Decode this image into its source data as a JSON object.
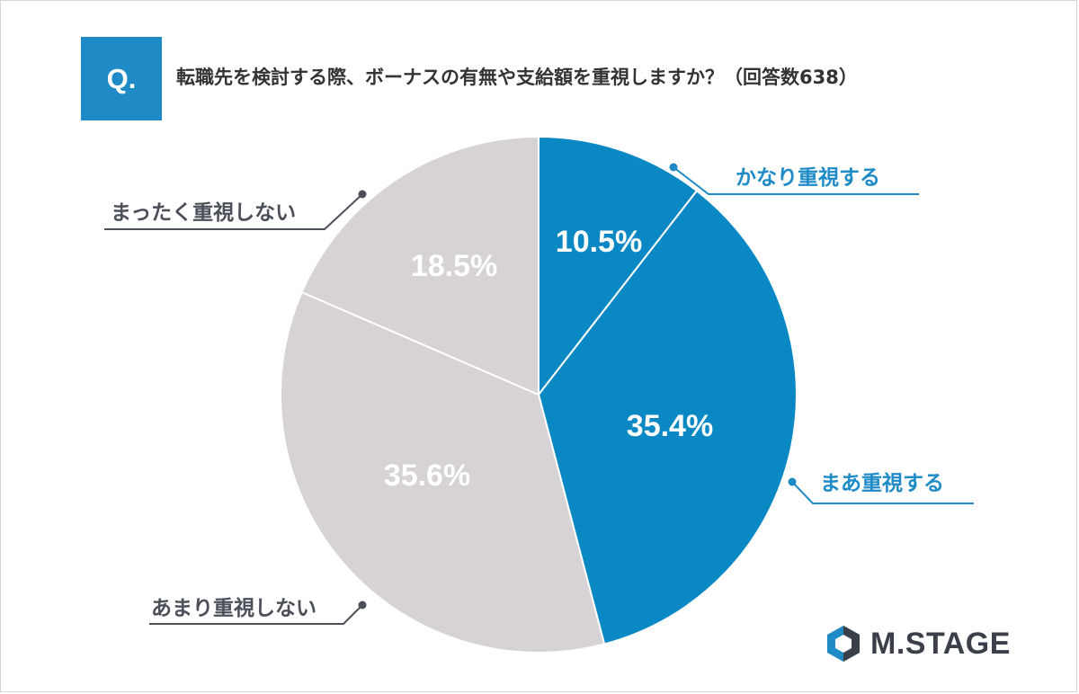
{
  "question": {
    "badge": "Q.",
    "text": "転職先を検討する際、ボーナスの有無や支給額を重視しますか？（回答数638）"
  },
  "logo": {
    "icon": "hexagon-logo-icon",
    "text": "M.STAGE"
  },
  "colors": {
    "blue": "#0a88c4",
    "gray": "#d6d2d5",
    "blue_label": "#1f8bc6",
    "gray_label": "#4b4f58"
  },
  "chart_data": {
    "type": "pie",
    "start_angle_deg": 0,
    "direction": "clockwise",
    "slices": [
      {
        "label": "かなり重視する",
        "value": 10.5,
        "value_label": "10.5%",
        "color": "#0a88c4"
      },
      {
        "label": "まあ重視する",
        "value": 35.4,
        "value_label": "35.4%",
        "color": "#0a88c4"
      },
      {
        "label": "あまり重視しない",
        "value": 35.6,
        "value_label": "35.6%",
        "color": "#d6d2d5"
      },
      {
        "label": "まったく重視しない",
        "value": 18.5,
        "value_label": "18.5%",
        "color": "#d6d2d5"
      }
    ]
  }
}
